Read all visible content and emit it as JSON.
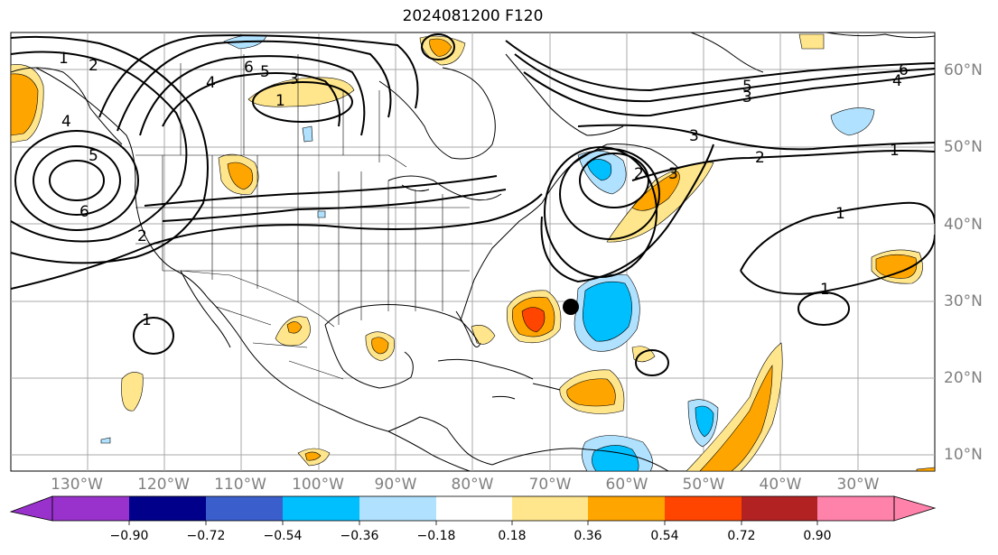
{
  "title": "2024081200 F120",
  "longitude_labels": [
    "130°W",
    "120°W",
    "110°W",
    "100°W",
    "90°W",
    "80°W",
    "70°W",
    "60°W",
    "50°W",
    "40°W",
    "30°W"
  ],
  "latitude_labels": [
    "60°N",
    "50°N",
    "40°N",
    "30°N",
    "20°N",
    "10°N"
  ],
  "colorbar": {
    "ticks": [
      "−0.90",
      "−0.72",
      "−0.54",
      "−0.36",
      "−0.18",
      "0.18",
      "0.36",
      "0.54",
      "0.72",
      "0.90"
    ],
    "colors": [
      "#9932cc",
      "#00008b",
      "#3a5fcd",
      "#00bfff",
      "#b0e2ff",
      "#ffffff",
      "#ffe68c",
      "#ffa500",
      "#ff4500",
      "#b22222",
      "#ff82ab"
    ]
  },
  "contour_labels": [
    "1",
    "2",
    "3",
    "4",
    "5",
    "6",
    "1",
    "2",
    "3",
    "4",
    "5",
    "6",
    "1",
    "2",
    "3",
    "4",
    "5",
    "6",
    "1",
    "1",
    "1",
    "2",
    "3"
  ],
  "marker": "storm-center-dot"
}
